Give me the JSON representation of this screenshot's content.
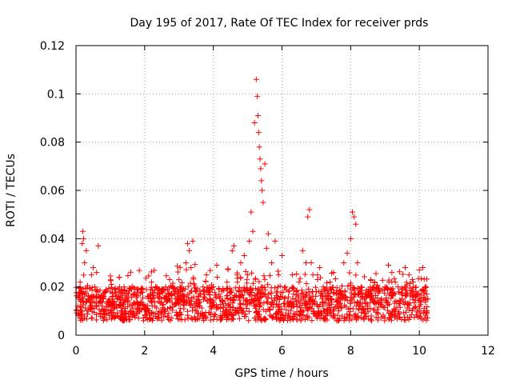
{
  "chart_data": {
    "type": "scatter",
    "title": "Day 195 of 2017, Rate Of TEC Index for receiver prds",
    "xlabel": "GPS time / hours",
    "ylabel": "ROTI / TECUs",
    "xlim": [
      0,
      12
    ],
    "ylim": [
      0,
      0.12
    ],
    "xticks": [
      0,
      2,
      4,
      6,
      8,
      10,
      12
    ],
    "yticks": [
      0,
      0.02,
      0.04,
      0.06,
      0.08,
      0.1,
      0.12
    ],
    "xtick_labels": [
      "0",
      "2",
      "4",
      "6",
      "8",
      "10",
      "12"
    ],
    "ytick_labels": [
      "0",
      "0.02",
      "0.04",
      "0.06",
      "0.08",
      "0.1",
      "0.12"
    ],
    "grid": true,
    "marker": "+",
    "series": [
      {
        "name": "ROTI",
        "color": "#ff0000",
        "x": [
          0.05,
          0.12,
          0.18,
          0.2,
          0.22,
          0.25,
          0.28,
          0.3,
          0.35,
          0.4,
          0.45,
          0.5,
          0.55,
          0.6,
          0.65,
          0.7,
          0.75,
          0.8,
          0.9,
          1.0,
          1.1,
          1.2,
          1.3,
          1.4,
          1.5,
          1.6,
          1.7,
          1.8,
          1.9,
          2.0,
          2.1,
          2.2,
          2.3,
          2.4,
          2.5,
          2.6,
          2.7,
          2.8,
          2.9,
          3.0,
          3.1,
          3.2,
          3.25,
          3.3,
          3.35,
          3.4,
          3.5,
          3.6,
          3.7,
          3.8,
          3.9,
          4.0,
          4.1,
          4.2,
          4.3,
          4.4,
          4.5,
          4.55,
          4.6,
          4.7,
          4.8,
          4.9,
          5.0,
          5.05,
          5.1,
          5.15,
          5.2,
          5.25,
          5.28,
          5.3,
          5.32,
          5.34,
          5.36,
          5.38,
          5.4,
          5.42,
          5.45,
          5.5,
          5.55,
          5.6,
          5.7,
          5.8,
          5.9,
          6.0,
          6.1,
          6.2,
          6.3,
          6.4,
          6.5,
          6.6,
          6.7,
          6.75,
          6.8,
          6.85,
          6.9,
          7.0,
          7.1,
          7.2,
          7.3,
          7.4,
          7.5,
          7.6,
          7.7,
          7.8,
          7.9,
          8.0,
          8.05,
          8.1,
          8.15,
          8.2,
          8.3,
          8.4,
          8.5,
          8.6,
          8.7,
          8.8,
          8.9,
          9.0,
          9.1,
          9.2,
          9.3,
          9.4,
          9.5,
          9.6,
          9.7,
          9.8,
          9.9,
          10.0,
          10.1,
          10.2,
          10.25
        ],
        "y": [
          0.012,
          0.022,
          0.038,
          0.043,
          0.04,
          0.03,
          0.018,
          0.035,
          0.015,
          0.012,
          0.025,
          0.028,
          0.02,
          0.026,
          0.037,
          0.014,
          0.01,
          0.016,
          0.013,
          0.018,
          0.011,
          0.015,
          0.012,
          0.02,
          0.014,
          0.01,
          0.017,
          0.013,
          0.019,
          0.011,
          0.016,
          0.022,
          0.012,
          0.014,
          0.018,
          0.01,
          0.015,
          0.02,
          0.013,
          0.023,
          0.017,
          0.03,
          0.038,
          0.035,
          0.028,
          0.039,
          0.018,
          0.012,
          0.02,
          0.025,
          0.015,
          0.02,
          0.029,
          0.016,
          0.012,
          0.022,
          0.018,
          0.035,
          0.037,
          0.022,
          0.03,
          0.033,
          0.025,
          0.039,
          0.051,
          0.043,
          0.088,
          0.106,
          0.099,
          0.091,
          0.084,
          0.078,
          0.073,
          0.069,
          0.064,
          0.06,
          0.055,
          0.071,
          0.036,
          0.042,
          0.03,
          0.039,
          0.025,
          0.033,
          0.02,
          0.018,
          0.025,
          0.015,
          0.022,
          0.035,
          0.03,
          0.049,
          0.052,
          0.03,
          0.025,
          0.018,
          0.028,
          0.02,
          0.015,
          0.022,
          0.026,
          0.012,
          0.018,
          0.03,
          0.034,
          0.04,
          0.051,
          0.049,
          0.046,
          0.03,
          0.02,
          0.015,
          0.012,
          0.008,
          0.022,
          0.018,
          0.015,
          0.02,
          0.029,
          0.026,
          0.022,
          0.018,
          0.015,
          0.02,
          0.025,
          0.023,
          0.018,
          0.027,
          0.028,
          0.02,
          0.015
        ]
      }
    ]
  }
}
